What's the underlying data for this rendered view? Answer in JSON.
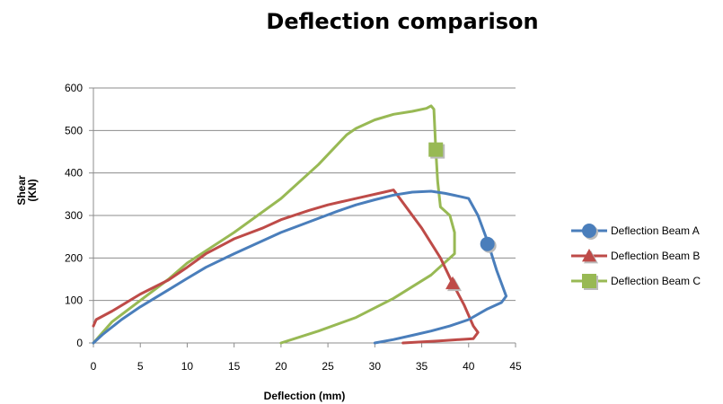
{
  "chart_data": {
    "type": "line",
    "title": "Deflection comparison",
    "xlabel": "Deflection (mm)",
    "ylabel_lines": [
      "Shear",
      "(KN)"
    ],
    "xlim": [
      0,
      45
    ],
    "ylim": [
      0,
      600
    ],
    "x_ticks": [
      "0",
      "5",
      "10",
      "15",
      "20",
      "25",
      "30",
      "35",
      "40",
      "45"
    ],
    "y_ticks": [
      "0",
      "100",
      "200",
      "300",
      "400",
      "500",
      "600"
    ],
    "grid": "horizontal",
    "legend_position": "right",
    "series": [
      {
        "name": "Deflection Beam A",
        "color": "#4a7ebb",
        "marker": "circle",
        "marker_point": [
          42,
          233
        ],
        "points": [
          [
            0,
            0
          ],
          [
            1,
            20
          ],
          [
            3,
            55
          ],
          [
            5,
            85
          ],
          [
            8,
            125
          ],
          [
            10,
            152
          ],
          [
            12,
            178
          ],
          [
            15,
            210
          ],
          [
            18,
            240
          ],
          [
            20,
            260
          ],
          [
            23,
            285
          ],
          [
            26,
            310
          ],
          [
            28,
            325
          ],
          [
            30,
            337
          ],
          [
            32,
            348
          ],
          [
            34,
            355
          ],
          [
            36,
            357
          ],
          [
            37.5,
            352
          ],
          [
            39,
            345
          ],
          [
            40,
            340
          ],
          [
            41,
            300
          ],
          [
            42,
            240
          ],
          [
            43,
            170
          ],
          [
            44,
            110
          ],
          [
            43.5,
            95
          ],
          [
            42,
            80
          ],
          [
            40,
            55
          ],
          [
            38,
            40
          ],
          [
            36,
            28
          ],
          [
            34,
            18
          ],
          [
            32,
            8
          ],
          [
            30,
            0
          ]
        ]
      },
      {
        "name": "Deflection Beam B",
        "color": "#be4b48",
        "marker": "triangle",
        "marker_point": [
          38.3,
          140
        ],
        "points": [
          [
            0,
            40
          ],
          [
            0.3,
            55
          ],
          [
            2,
            75
          ],
          [
            5,
            115
          ],
          [
            8,
            148
          ],
          [
            10,
            178
          ],
          [
            12,
            210
          ],
          [
            15,
            245
          ],
          [
            18,
            270
          ],
          [
            20,
            290
          ],
          [
            23,
            312
          ],
          [
            25,
            325
          ],
          [
            27,
            335
          ],
          [
            29,
            345
          ],
          [
            31,
            355
          ],
          [
            32,
            360
          ],
          [
            33,
            330
          ],
          [
            35,
            270
          ],
          [
            37,
            200
          ],
          [
            38.3,
            140
          ],
          [
            39.5,
            90
          ],
          [
            40.5,
            40
          ],
          [
            41,
            25
          ],
          [
            40.5,
            10
          ],
          [
            39,
            8
          ],
          [
            37,
            5
          ],
          [
            33,
            0
          ]
        ]
      },
      {
        "name": "Deflection Beam C",
        "color": "#98b954",
        "marker": "square",
        "marker_point": [
          36.5,
          455
        ],
        "points": [
          [
            0,
            0
          ],
          [
            2,
            50
          ],
          [
            5,
            100
          ],
          [
            8,
            150
          ],
          [
            10,
            188
          ],
          [
            15,
            260
          ],
          [
            20,
            340
          ],
          [
            24,
            420
          ],
          [
            27,
            490
          ],
          [
            28,
            505
          ],
          [
            30,
            525
          ],
          [
            32,
            538
          ],
          [
            34,
            545
          ],
          [
            35.5,
            552
          ],
          [
            36,
            558
          ],
          [
            36.3,
            550
          ],
          [
            36.5,
            455
          ],
          [
            36.7,
            380
          ],
          [
            37,
            320
          ],
          [
            38,
            300
          ],
          [
            38.5,
            260
          ],
          [
            38.5,
            210
          ],
          [
            36,
            160
          ],
          [
            32,
            105
          ],
          [
            28,
            60
          ],
          [
            24,
            28
          ],
          [
            20,
            0
          ]
        ]
      }
    ]
  }
}
